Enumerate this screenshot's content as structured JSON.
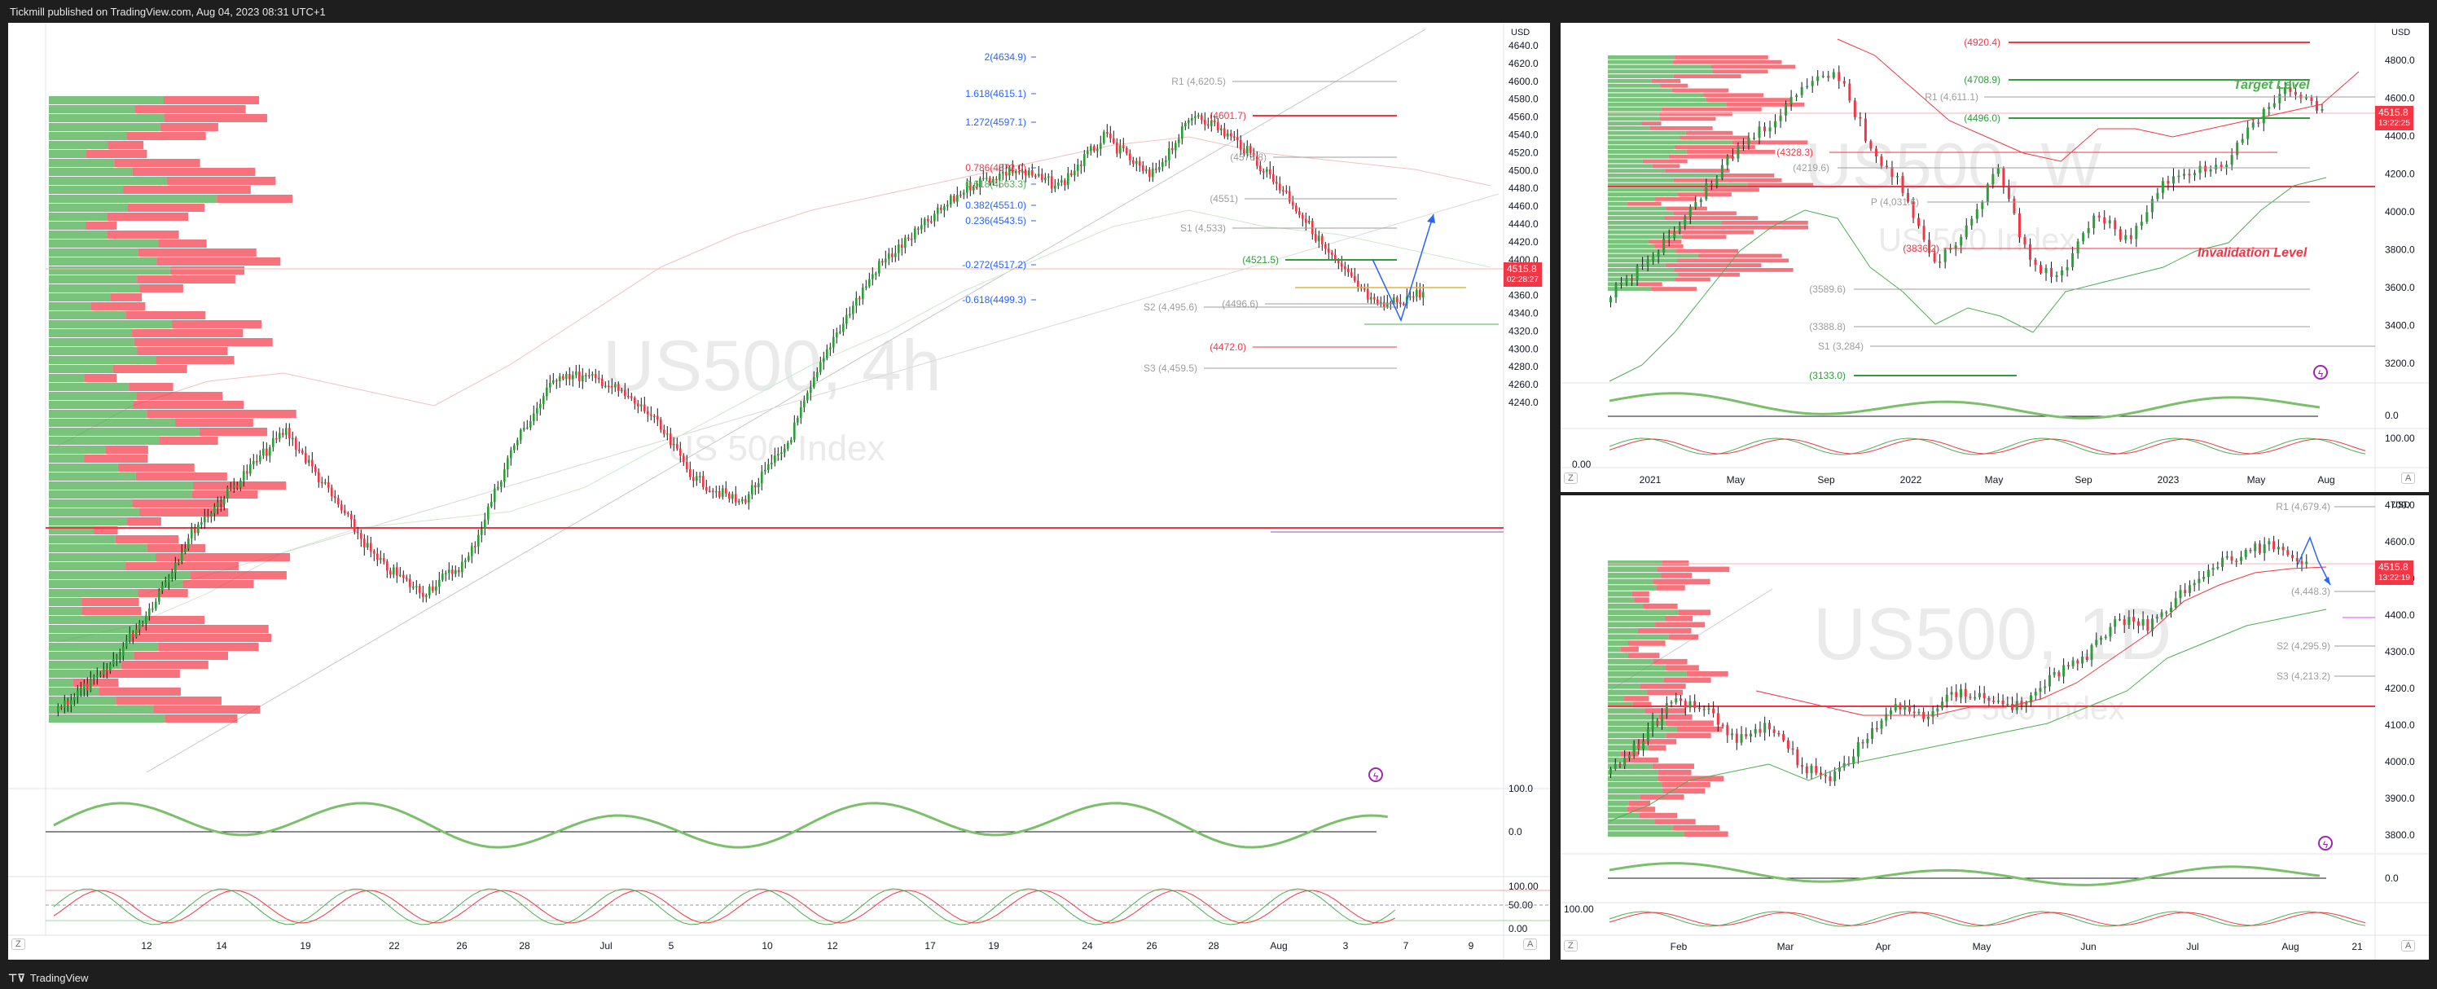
{
  "header": {
    "title": "Tickmill published on TradingView.com, Aug 04, 2023 08:31 UTC+1"
  },
  "footer": {
    "brand": "TradingView"
  },
  "colors": {
    "up": "#089981",
    "down": "#f23645",
    "fib": "#2962ff",
    "pivot": "#9e9e9e",
    "rsi": "#7bbf6a"
  },
  "left": {
    "symbol": "US500, 4h",
    "subtitle": "US 500 Index",
    "currency": "USD",
    "price": "4515.8",
    "countdown": "02:28:27",
    "y_ticks": [
      "4640.0",
      "4620.0",
      "4600.0",
      "4580.0",
      "4560.0",
      "4540.0",
      "4520.0",
      "4500.0",
      "4480.0",
      "4460.0",
      "4440.0",
      "4420.0",
      "4400.0",
      "4380.0",
      "4360.0",
      "4340.0",
      "4320.0",
      "4300.0",
      "4280.0",
      "4260.0",
      "4240.0"
    ],
    "x_ticks": [
      "12",
      "14",
      "19",
      "22",
      "26",
      "28",
      "Jul",
      "5",
      "10",
      "12",
      "17",
      "19",
      "24",
      "26",
      "28",
      "Aug",
      "3",
      "7",
      "9"
    ],
    "fib_labels": [
      "2(4634.9)",
      "1.618(4615.1)",
      "1.272(4597.1)",
      "0.786(4572.0)",
      "0.618(4563.3)",
      "0.382(4551.0)",
      "0.236(4543.5)",
      "-0.272(4517.2)",
      "-0.618(4499.3)"
    ],
    "pivot_labels": [
      "R1 (4,620.5)",
      "(4601.7)",
      "(4578.8)",
      "(4551)",
      "S1 (4,533)",
      "(4521.5)",
      "(4496.6)",
      "S2 (4,495.6)",
      "(4472.0)",
      "S3 (4,459.5)"
    ],
    "osc1_ticks": [
      "100.0",
      "0.0"
    ],
    "osc2_ticks": [
      "100.00",
      "50.00",
      "0.00"
    ],
    "corner_left": "Z",
    "corner_right": "A"
  },
  "right_top": {
    "symbol": "US500, W",
    "subtitle": "US 500 Index",
    "currency": "USD",
    "price": "4515.8",
    "countdown": "13:22:25",
    "y_ticks": [
      "4800.0",
      "4600.0",
      "4400.0",
      "4200.0",
      "4000.0",
      "3800.0",
      "3600.0",
      "3400.0",
      "3200.0"
    ],
    "x_ticks": [
      "2021",
      "May",
      "Sep",
      "2022",
      "May",
      "Sep",
      "2023",
      "May",
      "Aug"
    ],
    "labels": [
      "(4920.4)",
      "(4708.9)",
      "R1 (4,611.1)",
      "(4496.0)",
      "(4328.3)",
      "(4219.6)",
      "P (4,031.6)",
      "(3836.2)",
      "(3589.6)",
      "(3388.8)",
      "S1 (3,284)",
      "(3133.0)"
    ],
    "target_text": "Target Level",
    "invalid_text": "Invalidation Level",
    "osc1_ticks": [
      "0.0"
    ],
    "osc2_ticks": [
      "100.00",
      "0.00"
    ],
    "corner_left": "Z",
    "corner_right": "A"
  },
  "right_bottom": {
    "symbol": "US500, 1D",
    "subtitle": "US 500 Index",
    "currency": "USD",
    "price": "4515.8",
    "countdown": "13:22:19",
    "y_ticks": [
      "4700.0",
      "4600.0",
      "4500.0",
      "4400.0",
      "4300.0",
      "4200.0",
      "4100.0",
      "4000.0",
      "3900.0",
      "3800.0"
    ],
    "x_ticks": [
      "Feb",
      "Mar",
      "Apr",
      "May",
      "Jun",
      "Jul",
      "Aug",
      "21"
    ],
    "labels": [
      "R1 (4,679.4)",
      "(4,448.3)",
      "S2 (4,295.9)",
      "S3 (4,213.2)"
    ],
    "osc1_ticks": [
      "0.0"
    ],
    "osc2_ticks": [
      "100.00"
    ],
    "corner_left": "Z",
    "corner_right": "A"
  }
}
